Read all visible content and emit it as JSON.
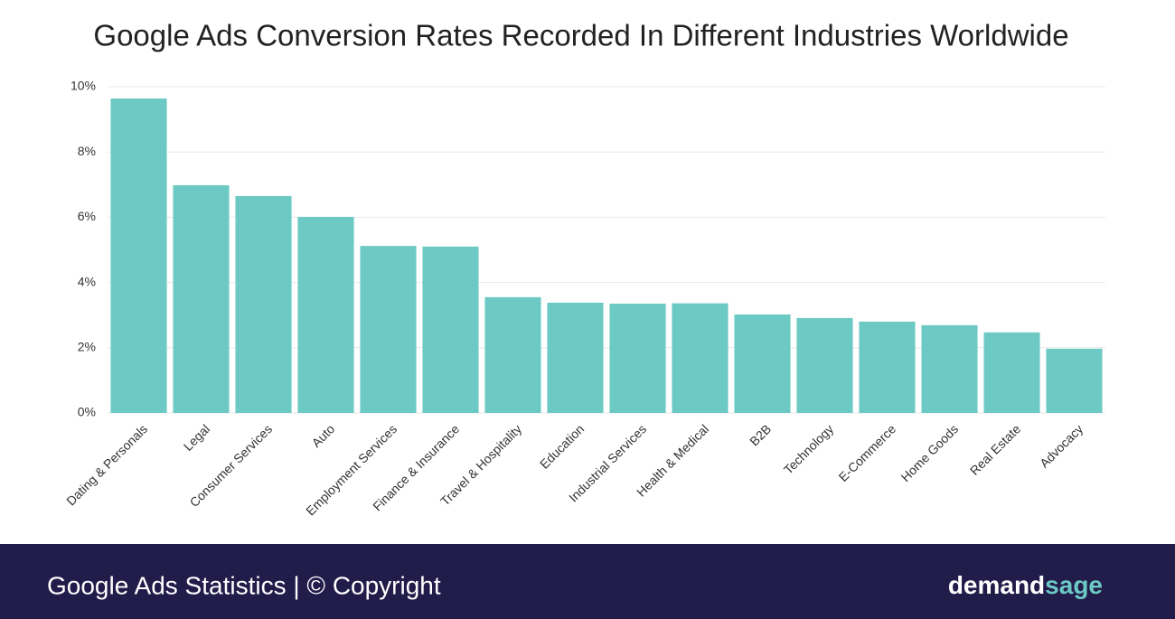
{
  "chart_data": {
    "type": "bar",
    "title": "Google Ads Conversion Rates Recorded In Different Industries Worldwide",
    "categories": [
      "Dating & Personals",
      "Legal",
      "Consumer Services",
      "Auto",
      "Employment Services",
      "Finance & Insurance",
      "Travel & Hospitality",
      "Education",
      "Industrial Services",
      "Health & Medical",
      "B2B",
      "Technology",
      "E-Commerce",
      "Home Goods",
      "Real Estate",
      "Advocacy"
    ],
    "values": [
      9.64,
      6.98,
      6.65,
      6.01,
      5.12,
      5.1,
      3.55,
      3.38,
      3.35,
      3.36,
      3.02,
      2.91,
      2.8,
      2.69,
      2.47,
      1.97
    ],
    "color": "#6cc9c4",
    "ylim": [
      0,
      10
    ],
    "yticks": [
      {
        "value": 0,
        "label": "0%"
      },
      {
        "value": 2,
        "label": "2%"
      },
      {
        "value": 4,
        "label": "4%"
      },
      {
        "value": 6,
        "label": "6%"
      },
      {
        "value": 8,
        "label": "8%"
      },
      {
        "value": 10,
        "label": "10%"
      }
    ],
    "grid": true
  },
  "footer": {
    "text": "Google Ads Statistics | © Copyright",
    "brand": [
      "demand",
      "sage"
    ]
  }
}
